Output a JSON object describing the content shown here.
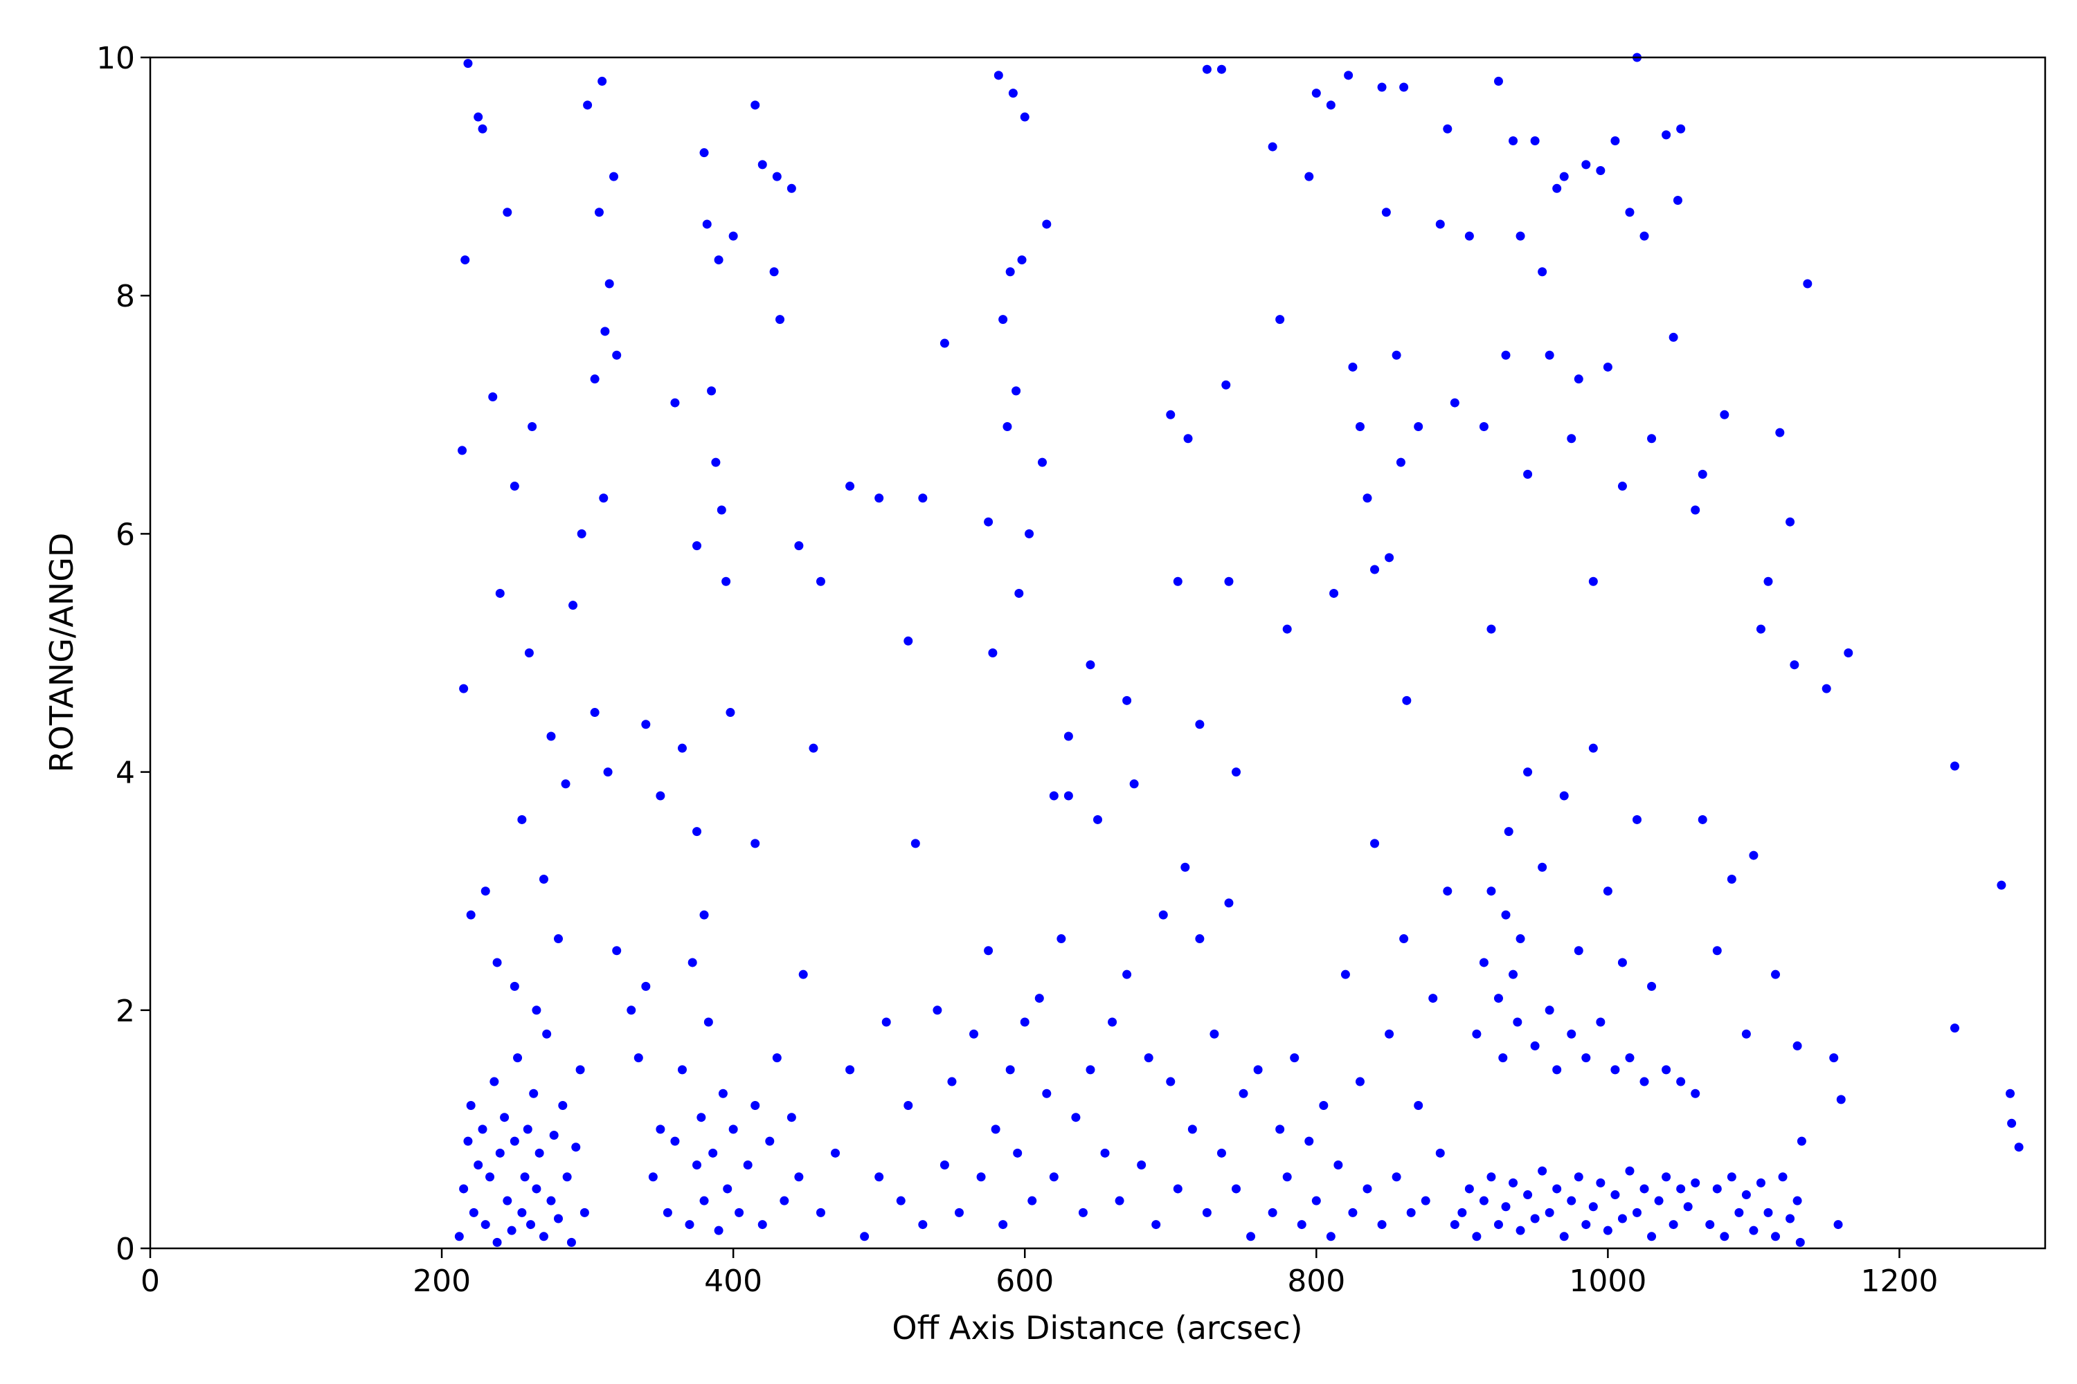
{
  "chart_data": {
    "type": "scatter",
    "xlabel": "Off Axis Distance (arcsec)",
    "ylabel": "ROTANG/ANGD",
    "xlim": [
      0,
      1300
    ],
    "ylim": [
      0,
      10
    ],
    "xticks": [
      0,
      200,
      400,
      600,
      800,
      1000,
      1200
    ],
    "yticks": [
      0,
      2,
      4,
      6,
      8,
      10
    ],
    "grid": false,
    "marker_color": "#0000ff",
    "points": [
      [
        212,
        0.1
      ],
      [
        215,
        0.5
      ],
      [
        218,
        0.9
      ],
      [
        220,
        1.2
      ],
      [
        222,
        0.3
      ],
      [
        225,
        0.7
      ],
      [
        228,
        1.0
      ],
      [
        230,
        0.2
      ],
      [
        233,
        0.6
      ],
      [
        236,
        1.4
      ],
      [
        238,
        0.05
      ],
      [
        240,
        0.8
      ],
      [
        243,
        1.1
      ],
      [
        245,
        0.4
      ],
      [
        248,
        0.15
      ],
      [
        250,
        0.9
      ],
      [
        252,
        1.6
      ],
      [
        255,
        0.3
      ],
      [
        257,
        0.6
      ],
      [
        259,
        1.0
      ],
      [
        261,
        0.2
      ],
      [
        263,
        1.3
      ],
      [
        265,
        0.5
      ],
      [
        267,
        0.8
      ],
      [
        270,
        0.1
      ],
      [
        272,
        1.8
      ],
      [
        275,
        0.4
      ],
      [
        277,
        0.95
      ],
      [
        280,
        0.25
      ],
      [
        283,
        1.2
      ],
      [
        286,
        0.6
      ],
      [
        289,
        0.05
      ],
      [
        292,
        0.85
      ],
      [
        295,
        1.5
      ],
      [
        298,
        0.3
      ],
      [
        214,
        6.7
      ],
      [
        216,
        8.3
      ],
      [
        218,
        9.95
      ],
      [
        225,
        9.5
      ],
      [
        228,
        9.4
      ],
      [
        235,
        7.15
      ],
      [
        240,
        5.5
      ],
      [
        245,
        8.7
      ],
      [
        250,
        6.4
      ],
      [
        255,
        3.6
      ],
      [
        260,
        5.0
      ],
      [
        262,
        6.9
      ],
      [
        270,
        3.1
      ],
      [
        275,
        4.3
      ],
      [
        280,
        2.6
      ],
      [
        285,
        3.9
      ],
      [
        290,
        5.4
      ],
      [
        296,
        6.0
      ],
      [
        300,
        9.6
      ],
      [
        215,
        4.7
      ],
      [
        220,
        2.8
      ],
      [
        230,
        3.0
      ],
      [
        238,
        2.4
      ],
      [
        250,
        2.2
      ],
      [
        265,
        2.0
      ],
      [
        305,
        7.3
      ],
      [
        308,
        8.7
      ],
      [
        310,
        9.8
      ],
      [
        312,
        7.7
      ],
      [
        315,
        8.1
      ],
      [
        318,
        9.0
      ],
      [
        320,
        7.5
      ],
      [
        311,
        6.3
      ],
      [
        314,
        4.0
      ],
      [
        305,
        4.5
      ],
      [
        320,
        2.5
      ],
      [
        330,
        2.0
      ],
      [
        335,
        1.6
      ],
      [
        340,
        2.2
      ],
      [
        345,
        0.6
      ],
      [
        350,
        1.0
      ],
      [
        355,
        0.3
      ],
      [
        360,
        0.9
      ],
      [
        365,
        1.5
      ],
      [
        370,
        0.2
      ],
      [
        372,
        2.4
      ],
      [
        375,
        0.7
      ],
      [
        378,
        1.1
      ],
      [
        380,
        0.4
      ],
      [
        383,
        1.9
      ],
      [
        386,
        0.8
      ],
      [
        390,
        0.15
      ],
      [
        393,
        1.3
      ],
      [
        396,
        0.5
      ],
      [
        400,
        1.0
      ],
      [
        404,
        0.3
      ],
      [
        410,
        0.7
      ],
      [
        415,
        1.2
      ],
      [
        420,
        0.2
      ],
      [
        425,
        0.9
      ],
      [
        430,
        1.6
      ],
      [
        435,
        0.4
      ],
      [
        440,
        1.1
      ],
      [
        445,
        0.6
      ],
      [
        448,
        2.3
      ],
      [
        360,
        7.1
      ],
      [
        375,
        5.9
      ],
      [
        380,
        9.2
      ],
      [
        382,
        8.6
      ],
      [
        385,
        7.2
      ],
      [
        388,
        6.6
      ],
      [
        390,
        8.3
      ],
      [
        392,
        6.2
      ],
      [
        395,
        5.6
      ],
      [
        398,
        4.5
      ],
      [
        400,
        8.5
      ],
      [
        375,
        3.5
      ],
      [
        365,
        4.2
      ],
      [
        380,
        2.8
      ],
      [
        415,
        9.6
      ],
      [
        420,
        9.1
      ],
      [
        428,
        8.2
      ],
      [
        430,
        9.0
      ],
      [
        432,
        7.8
      ],
      [
        440,
        8.9
      ],
      [
        445,
        5.9
      ],
      [
        455,
        4.2
      ],
      [
        460,
        5.6
      ],
      [
        415,
        3.4
      ],
      [
        350,
        3.8
      ],
      [
        340,
        4.4
      ],
      [
        460,
        0.3
      ],
      [
        470,
        0.8
      ],
      [
        480,
        1.5
      ],
      [
        490,
        0.1
      ],
      [
        500,
        0.6
      ],
      [
        505,
        1.9
      ],
      [
        515,
        0.4
      ],
      [
        520,
        1.2
      ],
      [
        525,
        3.4
      ],
      [
        530,
        0.2
      ],
      [
        540,
        2.0
      ],
      [
        545,
        0.7
      ],
      [
        550,
        1.4
      ],
      [
        555,
        0.3
      ],
      [
        565,
        1.8
      ],
      [
        570,
        0.6
      ],
      [
        575,
        2.5
      ],
      [
        580,
        1.0
      ],
      [
        585,
        0.2
      ],
      [
        590,
        1.5
      ],
      [
        595,
        0.8
      ],
      [
        600,
        1.9
      ],
      [
        605,
        0.4
      ],
      [
        610,
        2.1
      ],
      [
        615,
        1.3
      ],
      [
        620,
        0.6
      ],
      [
        625,
        2.6
      ],
      [
        630,
        3.8
      ],
      [
        635,
        1.1
      ],
      [
        640,
        0.3
      ],
      [
        645,
        1.5
      ],
      [
        650,
        3.6
      ],
      [
        655,
        0.8
      ],
      [
        660,
        1.9
      ],
      [
        665,
        0.4
      ],
      [
        670,
        2.3
      ],
      [
        675,
        3.9
      ],
      [
        680,
        0.7
      ],
      [
        685,
        1.6
      ],
      [
        690,
        0.2
      ],
      [
        695,
        2.8
      ],
      [
        700,
        1.4
      ],
      [
        705,
        0.5
      ],
      [
        710,
        3.2
      ],
      [
        715,
        1.0
      ],
      [
        720,
        2.6
      ],
      [
        725,
        0.3
      ],
      [
        730,
        1.8
      ],
      [
        735,
        0.8
      ],
      [
        740,
        2.9
      ],
      [
        745,
        0.5
      ],
      [
        750,
        1.3
      ],
      [
        755,
        0.1
      ],
      [
        760,
        1.5
      ],
      [
        480,
        6.4
      ],
      [
        500,
        6.3
      ],
      [
        530,
        6.3
      ],
      [
        545,
        7.6
      ],
      [
        520,
        5.1
      ],
      [
        575,
        6.1
      ],
      [
        578,
        5.0
      ],
      [
        582,
        9.85
      ],
      [
        585,
        7.8
      ],
      [
        588,
        6.9
      ],
      [
        590,
        8.2
      ],
      [
        592,
        9.7
      ],
      [
        594,
        7.2
      ],
      [
        596,
        5.5
      ],
      [
        598,
        8.3
      ],
      [
        600,
        9.5
      ],
      [
        603,
        6.0
      ],
      [
        612,
        6.6
      ],
      [
        615,
        8.6
      ],
      [
        620,
        3.8
      ],
      [
        630,
        4.3
      ],
      [
        645,
        4.9
      ],
      [
        670,
        4.6
      ],
      [
        700,
        7.0
      ],
      [
        712,
        6.8
      ],
      [
        705,
        5.6
      ],
      [
        720,
        4.4
      ],
      [
        725,
        9.9
      ],
      [
        735,
        9.9
      ],
      [
        738,
        7.25
      ],
      [
        740,
        5.6
      ],
      [
        745,
        4.0
      ],
      [
        770,
        0.3
      ],
      [
        775,
        1.0
      ],
      [
        780,
        0.6
      ],
      [
        785,
        1.6
      ],
      [
        790,
        0.2
      ],
      [
        795,
        0.9
      ],
      [
        800,
        0.4
      ],
      [
        805,
        1.2
      ],
      [
        810,
        0.1
      ],
      [
        815,
        0.7
      ],
      [
        820,
        2.3
      ],
      [
        825,
        0.3
      ],
      [
        830,
        1.4
      ],
      [
        835,
        0.5
      ],
      [
        840,
        3.4
      ],
      [
        845,
        0.2
      ],
      [
        850,
        1.8
      ],
      [
        855,
        0.6
      ],
      [
        860,
        2.6
      ],
      [
        865,
        0.3
      ],
      [
        870,
        1.2
      ],
      [
        875,
        0.4
      ],
      [
        880,
        2.1
      ],
      [
        885,
        0.8
      ],
      [
        890,
        3.0
      ],
      [
        895,
        0.2
      ],
      [
        770,
        9.25
      ],
      [
        775,
        7.8
      ],
      [
        780,
        5.2
      ],
      [
        795,
        9.0
      ],
      [
        800,
        9.7
      ],
      [
        810,
        9.6
      ],
      [
        812,
        5.5
      ],
      [
        822,
        9.85
      ],
      [
        825,
        7.4
      ],
      [
        830,
        6.9
      ],
      [
        835,
        6.3
      ],
      [
        840,
        5.7
      ],
      [
        845,
        9.75
      ],
      [
        848,
        8.7
      ],
      [
        850,
        5.8
      ],
      [
        855,
        7.5
      ],
      [
        858,
        6.6
      ],
      [
        860,
        9.75
      ],
      [
        862,
        4.6
      ],
      [
        870,
        6.9
      ],
      [
        885,
        8.6
      ],
      [
        890,
        9.4
      ],
      [
        895,
        7.1
      ],
      [
        900,
        0.3
      ],
      [
        905,
        0.5
      ],
      [
        910,
        0.1
      ],
      [
        915,
        0.4
      ],
      [
        920,
        0.6
      ],
      [
        925,
        0.2
      ],
      [
        930,
        0.35
      ],
      [
        935,
        0.55
      ],
      [
        940,
        0.15
      ],
      [
        945,
        0.45
      ],
      [
        950,
        0.25
      ],
      [
        955,
        0.65
      ],
      [
        960,
        0.3
      ],
      [
        965,
        0.5
      ],
      [
        970,
        0.1
      ],
      [
        975,
        0.4
      ],
      [
        980,
        0.6
      ],
      [
        985,
        0.2
      ],
      [
        990,
        0.35
      ],
      [
        995,
        0.55
      ],
      [
        1000,
        0.15
      ],
      [
        1005,
        0.45
      ],
      [
        1010,
        0.25
      ],
      [
        1015,
        0.65
      ],
      [
        1020,
        0.3
      ],
      [
        1025,
        0.5
      ],
      [
        1030,
        0.1
      ],
      [
        1035,
        0.4
      ],
      [
        1040,
        0.6
      ],
      [
        1045,
        0.2
      ],
      [
        1050,
        0.5
      ],
      [
        1055,
        0.35
      ],
      [
        1060,
        0.55
      ],
      [
        910,
        1.8
      ],
      [
        915,
        2.4
      ],
      [
        920,
        3.0
      ],
      [
        925,
        2.1
      ],
      [
        928,
        1.6
      ],
      [
        930,
        2.8
      ],
      [
        932,
        3.5
      ],
      [
        935,
        2.3
      ],
      [
        938,
        1.9
      ],
      [
        940,
        2.6
      ],
      [
        945,
        4.0
      ],
      [
        950,
        1.7
      ],
      [
        955,
        3.2
      ],
      [
        960,
        2.0
      ],
      [
        965,
        1.5
      ],
      [
        970,
        3.8
      ],
      [
        975,
        1.8
      ],
      [
        980,
        2.5
      ],
      [
        985,
        1.6
      ],
      [
        990,
        4.2
      ],
      [
        995,
        1.9
      ],
      [
        1000,
        3.0
      ],
      [
        1005,
        1.5
      ],
      [
        1010,
        2.4
      ],
      [
        1015,
        1.6
      ],
      [
        1020,
        3.6
      ],
      [
        1025,
        1.4
      ],
      [
        1030,
        2.2
      ],
      [
        1040,
        1.5
      ],
      [
        1050,
        1.4
      ],
      [
        1060,
        1.3
      ],
      [
        1065,
        3.6
      ],
      [
        905,
        8.5
      ],
      [
        915,
        6.9
      ],
      [
        920,
        5.2
      ],
      [
        925,
        9.8
      ],
      [
        930,
        7.5
      ],
      [
        935,
        9.3
      ],
      [
        940,
        8.5
      ],
      [
        945,
        6.5
      ],
      [
        950,
        9.3
      ],
      [
        955,
        8.2
      ],
      [
        960,
        7.5
      ],
      [
        965,
        8.9
      ],
      [
        970,
        9.0
      ],
      [
        975,
        6.8
      ],
      [
        980,
        7.3
      ],
      [
        985,
        9.1
      ],
      [
        990,
        5.6
      ],
      [
        995,
        9.05
      ],
      [
        1000,
        7.4
      ],
      [
        1005,
        9.3
      ],
      [
        1010,
        6.4
      ],
      [
        1015,
        8.7
      ],
      [
        1020,
        10.0
      ],
      [
        1025,
        8.5
      ],
      [
        1030,
        6.8
      ],
      [
        1040,
        9.35
      ],
      [
        1045,
        7.65
      ],
      [
        1048,
        8.8
      ],
      [
        1050,
        9.4
      ],
      [
        1060,
        6.2
      ],
      [
        1065,
        6.5
      ],
      [
        1070,
        0.2
      ],
      [
        1075,
        0.5
      ],
      [
        1080,
        0.1
      ],
      [
        1085,
        0.6
      ],
      [
        1090,
        0.3
      ],
      [
        1095,
        0.45
      ],
      [
        1100,
        0.15
      ],
      [
        1105,
        0.55
      ],
      [
        1110,
        0.3
      ],
      [
        1115,
        0.1
      ],
      [
        1120,
        0.6
      ],
      [
        1125,
        0.25
      ],
      [
        1130,
        0.4
      ],
      [
        1132,
        0.05
      ],
      [
        1075,
        2.5
      ],
      [
        1080,
        7.0
      ],
      [
        1085,
        3.1
      ],
      [
        1095,
        1.8
      ],
      [
        1100,
        3.3
      ],
      [
        1105,
        5.2
      ],
      [
        1110,
        5.6
      ],
      [
        1115,
        2.3
      ],
      [
        1118,
        6.85
      ],
      [
        1125,
        6.1
      ],
      [
        1128,
        4.9
      ],
      [
        1130,
        1.7
      ],
      [
        1133,
        0.9
      ],
      [
        1137,
        8.1
      ],
      [
        1150,
        4.7
      ],
      [
        1155,
        1.6
      ],
      [
        1158,
        0.2
      ],
      [
        1160,
        1.25
      ],
      [
        1165,
        5.0
      ],
      [
        1238,
        4.05
      ],
      [
        1238,
        1.85
      ],
      [
        1270,
        3.05
      ],
      [
        1276,
        1.3
      ],
      [
        1277,
        1.05
      ],
      [
        1282,
        0.85
      ]
    ]
  }
}
